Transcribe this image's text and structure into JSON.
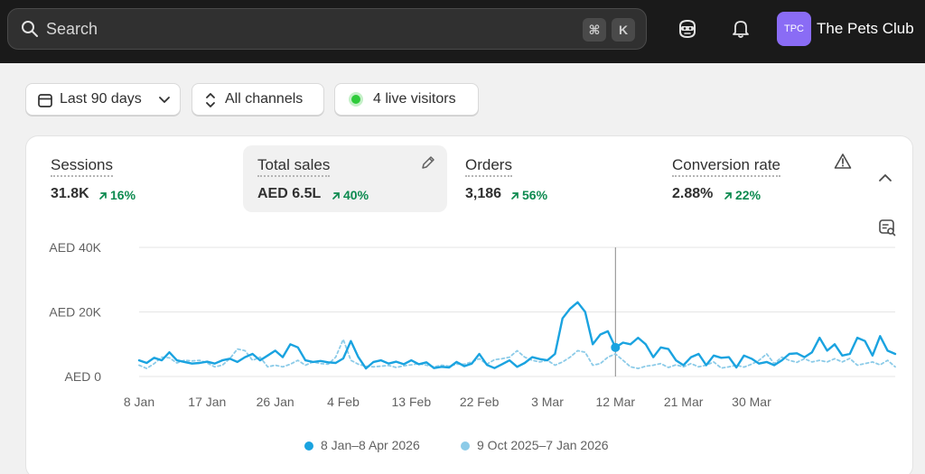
{
  "topbar": {
    "search_placeholder": "Search",
    "shortcut_cmd": "⌘",
    "shortcut_key": "K",
    "store_initials": "TPC",
    "store_name": "The Pets Club"
  },
  "filters": {
    "date_range": "Last 90 days",
    "channels": "All channels",
    "live_visitors": "4 live visitors"
  },
  "metrics": [
    {
      "title": "Sessions",
      "value": "31.8K",
      "change": "16%"
    },
    {
      "title": "Total sales",
      "value": "AED 6.5L",
      "change": "40%"
    },
    {
      "title": "Orders",
      "value": "3,186",
      "change": "56%"
    },
    {
      "title": "Conversion rate",
      "value": "2.88%",
      "change": "22%"
    }
  ],
  "colors": {
    "current_series": "#1aa3e0",
    "previous_series": "#8ccbe8",
    "positive_change": "#0c8a4f",
    "live": "#2ecb3a"
  },
  "chart_data": {
    "type": "line",
    "y_tick_labels": [
      "AED 0",
      "AED 20K",
      "AED 40K"
    ],
    "y_ticks": [
      0,
      20000,
      40000
    ],
    "ylim": [
      0,
      40000
    ],
    "x_tick_labels": [
      "8 Jan",
      "17 Jan",
      "26 Jan",
      "4 Feb",
      "13 Feb",
      "22 Feb",
      "3 Mar",
      "12 Mar",
      "21 Mar",
      "30 Mar"
    ],
    "x_tick_day_index": [
      0,
      9,
      18,
      27,
      36,
      45,
      54,
      63,
      72,
      81
    ],
    "grid": true,
    "hover_day_index": 63,
    "series": [
      {
        "name": "8 Jan–8 Apr 2026",
        "style": "solid",
        "values": [
          5000,
          4200,
          5800,
          5000,
          7500,
          5000,
          4500,
          4000,
          4200,
          4600,
          4000,
          5000,
          5500,
          4500,
          6000,
          7000,
          5000,
          6500,
          8000,
          6000,
          10000,
          9000,
          5000,
          4500,
          4800,
          4400,
          4200,
          5600,
          11000,
          6000,
          2500,
          4500,
          5000,
          4000,
          4600,
          3800,
          5000,
          3800,
          4400,
          2600,
          3000,
          2800,
          4500,
          3200,
          4000,
          7000,
          3600,
          2600,
          3800,
          5000,
          3000,
          4200,
          6000,
          5400,
          5000,
          7000,
          18000,
          21000,
          23000,
          20000,
          10000,
          13000,
          14000,
          9000,
          10500,
          10000,
          12000,
          10000,
          6000,
          9000,
          8500,
          5000,
          3500,
          6000,
          7000,
          3500,
          6500,
          5800,
          6000,
          2800,
          6500,
          5500,
          4000,
          4500,
          3500,
          5000,
          7000,
          7200,
          6000,
          7500,
          12000,
          8000,
          10000,
          6500,
          7000,
          12000,
          11000,
          6500,
          12500,
          8000,
          7000
        ]
      },
      {
        "name": "9 Oct 2025–7 Jan 2026",
        "style": "dotted",
        "values": [
          3500,
          2500,
          4000,
          6000,
          5800,
          4200,
          5000,
          4800,
          5000,
          4200,
          3000,
          3500,
          5500,
          8500,
          8000,
          5000,
          6000,
          3000,
          3500,
          3000,
          3800,
          5000,
          3500,
          4500,
          4000,
          3800,
          6000,
          11500,
          5000,
          3800,
          3200,
          3000,
          3200,
          3400,
          2800,
          3300,
          3600,
          4000,
          3500,
          3000,
          3500,
          3200,
          3800,
          3800,
          4500,
          5500,
          3800,
          5200,
          5500,
          6000,
          8000,
          6000,
          5000,
          4500,
          5000,
          3500,
          4500,
          6000,
          8000,
          7500,
          3500,
          4000,
          6000,
          7000,
          5000,
          3000,
          2500,
          3200,
          3500,
          4000,
          2800,
          3600,
          3000,
          4000,
          3000,
          3500,
          4500,
          2600,
          3000,
          3500,
          2900,
          3800,
          5000,
          7000,
          4000,
          6000,
          5000,
          4400,
          5500,
          4500,
          5000,
          4500,
          5500,
          4500,
          5600,
          3500,
          4000,
          4500,
          3600,
          5000,
          3000
        ]
      }
    ]
  }
}
